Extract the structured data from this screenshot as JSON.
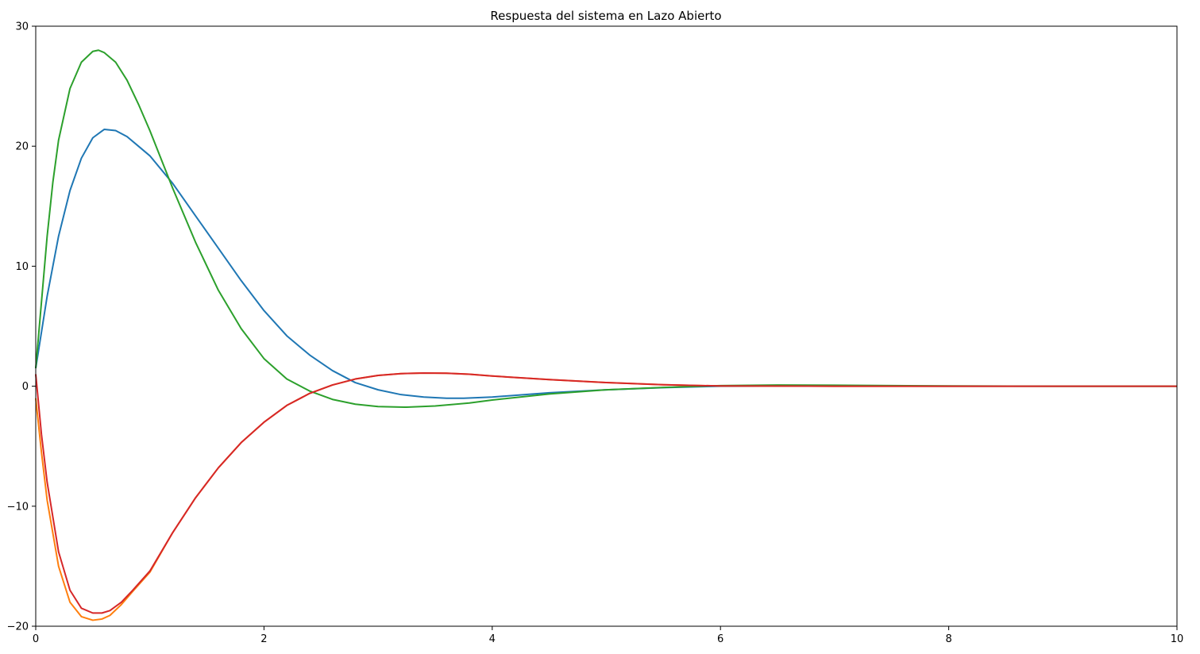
{
  "chart_data": {
    "type": "line",
    "title": "Respuesta del sistema en Lazo Abierto",
    "xlabel": "",
    "ylabel": "",
    "xlim": [
      0,
      10
    ],
    "ylim": [
      -20,
      30
    ],
    "xticks": [
      0,
      2,
      4,
      6,
      8,
      10
    ],
    "yticks": [
      -20,
      -10,
      0,
      10,
      20,
      30
    ],
    "xtick_labels": [
      "0",
      "2",
      "4",
      "6",
      "8",
      "10"
    ],
    "ytick_labels": [
      "−20",
      "−10",
      "0",
      "10",
      "20",
      "30"
    ],
    "grid": false,
    "legend": "none",
    "series": [
      {
        "color": "#1f77b4",
        "x": [
          0,
          0.05,
          0.1,
          0.2,
          0.3,
          0.4,
          0.5,
          0.6,
          0.7,
          0.8,
          0.9,
          1.0,
          1.2,
          1.4,
          1.6,
          1.8,
          2.0,
          2.2,
          2.4,
          2.6,
          2.8,
          3.0,
          3.2,
          3.4,
          3.6,
          3.75,
          4.0,
          4.5,
          5.0,
          5.5,
          6.0,
          7.0,
          8.0,
          9.0,
          10.0
        ],
        "y": [
          1.5,
          4.5,
          7.5,
          12.5,
          16.3,
          19.0,
          20.7,
          21.4,
          21.3,
          20.8,
          20.0,
          19.2,
          16.9,
          14.2,
          11.5,
          8.8,
          6.3,
          4.2,
          2.6,
          1.3,
          0.3,
          -0.3,
          -0.7,
          -0.9,
          -1.0,
          -1.0,
          -0.9,
          -0.55,
          -0.3,
          -0.12,
          0.0,
          0.02,
          0.0,
          0.0,
          0.0
        ]
      },
      {
        "color": "#ff7f0e",
        "x": [
          0,
          0.05,
          0.1,
          0.2,
          0.3,
          0.4,
          0.5,
          0.58,
          0.65,
          0.75,
          0.85,
          1.0,
          1.2,
          1.4,
          1.6,
          1.8,
          2.0,
          2.2,
          2.4,
          2.6,
          2.8,
          3.0,
          3.2,
          3.4,
          3.6,
          3.8,
          4.0,
          4.5,
          5.0,
          5.5,
          6.0,
          7.0,
          8.0,
          9.0,
          10.0
        ],
        "y": [
          -1.0,
          -5.5,
          -9.5,
          -15.0,
          -18.0,
          -19.2,
          -19.5,
          -19.4,
          -19.1,
          -18.2,
          -17.1,
          -15.5,
          -12.2,
          -9.3,
          -6.8,
          -4.7,
          -3.0,
          -1.6,
          -0.6,
          0.1,
          0.6,
          0.9,
          1.05,
          1.1,
          1.08,
          1.0,
          0.85,
          0.55,
          0.3,
          0.12,
          0.02,
          0.0,
          0.0,
          0.0,
          0.0
        ]
      },
      {
        "color": "#2ca02c",
        "x": [
          0,
          0.05,
          0.1,
          0.15,
          0.2,
          0.3,
          0.4,
          0.5,
          0.55,
          0.6,
          0.7,
          0.8,
          0.9,
          1.0,
          1.2,
          1.4,
          1.6,
          1.8,
          2.0,
          2.2,
          2.4,
          2.6,
          2.8,
          3.0,
          3.25,
          3.5,
          3.8,
          4.0,
          4.5,
          5.0,
          5.5,
          6.0,
          6.5,
          7.0,
          8.0,
          9.0,
          10.0
        ],
        "y": [
          1.5,
          7.0,
          12.5,
          17.0,
          20.5,
          24.8,
          27.0,
          27.9,
          28.0,
          27.8,
          27.0,
          25.5,
          23.5,
          21.3,
          16.5,
          12.0,
          8.0,
          4.8,
          2.3,
          0.6,
          -0.4,
          -1.1,
          -1.5,
          -1.7,
          -1.75,
          -1.65,
          -1.4,
          -1.15,
          -0.65,
          -0.3,
          -0.1,
          0.05,
          0.1,
          0.08,
          0.02,
          0.0,
          0.0
        ]
      },
      {
        "color": "#d62728",
        "x": [
          0,
          0.05,
          0.1,
          0.2,
          0.3,
          0.4,
          0.5,
          0.58,
          0.65,
          0.75,
          0.85,
          1.0,
          1.2,
          1.4,
          1.6,
          1.8,
          2.0,
          2.2,
          2.4,
          2.6,
          2.8,
          3.0,
          3.2,
          3.4,
          3.6,
          3.8,
          4.0,
          4.5,
          5.0,
          5.5,
          6.0,
          7.0,
          8.0,
          9.0,
          10.0
        ],
        "y": [
          1.0,
          -4.0,
          -8.0,
          -13.8,
          -17.0,
          -18.5,
          -18.9,
          -18.9,
          -18.7,
          -18.0,
          -17.0,
          -15.4,
          -12.2,
          -9.3,
          -6.8,
          -4.7,
          -3.0,
          -1.6,
          -0.6,
          0.1,
          0.6,
          0.9,
          1.05,
          1.1,
          1.08,
          1.0,
          0.85,
          0.55,
          0.3,
          0.12,
          0.02,
          0.0,
          0.0,
          0.0,
          0.0
        ]
      }
    ]
  }
}
